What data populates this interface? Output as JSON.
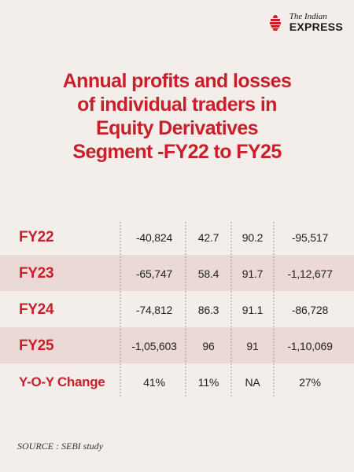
{
  "brand": {
    "logo_top": "The Indian",
    "logo_bottom": "EXPRESS",
    "accent": "#c8202a"
  },
  "title_lines": [
    "Annual profits and losses",
    "of individual traders in",
    "Equity Derivatives",
    "Segment -FY22 to FY25"
  ],
  "source": "SOURCE : SEBI study",
  "chart_data": {
    "type": "table",
    "rows": [
      {
        "label": "FY22",
        "cells": [
          "-40,824",
          "42.7",
          "90.2",
          "-95,517"
        ],
        "shaded": false
      },
      {
        "label": "FY23",
        "cells": [
          "-65,747",
          "58.4",
          "91.7",
          "-1,12,677"
        ],
        "shaded": true
      },
      {
        "label": "FY24",
        "cells": [
          "-74,812",
          "86.3",
          "91.1",
          "-86,728"
        ],
        "shaded": false
      },
      {
        "label": "FY25",
        "cells": [
          "-1,05,603",
          "96",
          "91",
          "-1,10,069"
        ],
        "shaded": true
      },
      {
        "label": "Y-O-Y Change",
        "cells": [
          "41%",
          "11%",
          "NA",
          "27%"
        ],
        "shaded": false
      }
    ],
    "colors": {
      "label": "#c8202a",
      "value": "#222222",
      "row_shade": "#ebd9d6",
      "divider": "#9a9a9a"
    }
  }
}
